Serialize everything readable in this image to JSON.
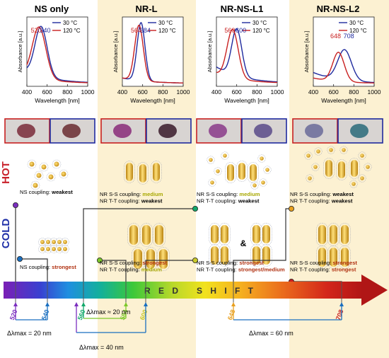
{
  "panels": [
    {
      "title": "NS only",
      "peak_30": "540",
      "peak_120": "520",
      "highlight": false
    },
    {
      "title": "NR-L",
      "peak_30": "584",
      "peak_120": "564",
      "highlight": true
    },
    {
      "title": "NR-NS-L1",
      "peak_30": "600",
      "peak_120": "560",
      "highlight": false
    },
    {
      "title": "NR-NS-L2",
      "peak_30": "708",
      "peak_120": "648",
      "highlight": true
    }
  ],
  "legend": {
    "t30": "30 °C",
    "t120": "120 °C"
  },
  "axes": {
    "xlabel": "Wavelength [nm]",
    "ylabel": "Absorbance [a.u.]",
    "xticks": [
      "400",
      "600",
      "800",
      "1000"
    ]
  },
  "colors": {
    "c30": "#1f2a9e",
    "c120": "#c82020",
    "panel_bg": "#fcf1d2",
    "rod": "#d9a520"
  },
  "side_labels": {
    "hot": "HOT",
    "cold": "COLD"
  },
  "hot_texts": [
    [
      {
        "t": "NS coupling: "
      },
      {
        "t": "weakest",
        "b": true
      }
    ],
    [
      {
        "t": "NR S-S coupling: "
      },
      {
        "t": "medium",
        "c": "#a8a800"
      },
      {
        "t": "\nNR T-T coupling: "
      },
      {
        "t": "weakest",
        "b": true
      }
    ],
    [
      {
        "t": "NR S-S coupling: "
      },
      {
        "t": "medium",
        "c": "#a8a800"
      },
      {
        "t": "\nNR T-T coupling: "
      },
      {
        "t": "weakest",
        "b": true
      }
    ],
    [
      {
        "t": "NR S-S coupling: "
      },
      {
        "t": "weakest",
        "b": true
      },
      {
        "t": "\nNR T-T coupling: "
      },
      {
        "t": "weakest",
        "b": true
      }
    ]
  ],
  "cold_texts": [
    [
      {
        "t": "NS coupling: "
      },
      {
        "t": "strongest",
        "c": "#b03010"
      }
    ],
    [
      {
        "t": "NR S-S coupling: "
      },
      {
        "t": "strongest",
        "c": "#b03010"
      },
      {
        "t": "\nNR T-T coupling: "
      },
      {
        "t": "medium",
        "c": "#a8a800"
      }
    ],
    [
      {
        "t": "NR S-S coupling: "
      },
      {
        "t": "strongest",
        "c": "#b03010"
      },
      {
        "t": "\nNR T-T coupling: "
      },
      {
        "t": "strongest/medium",
        "c": "#b03010"
      }
    ],
    [
      {
        "t": "NR S-S coupling: "
      },
      {
        "t": "strongest",
        "c": "#b03010"
      },
      {
        "t": "\nNR T-T coupling: "
      },
      {
        "t": "strongest",
        "c": "#b03010"
      }
    ]
  ],
  "ampersand": "&",
  "redshift_word": "R E D   S H I F T",
  "bar_ticks": [
    {
      "label": "520",
      "color": "#7b2fbf"
    },
    {
      "label": "540",
      "color": "#1a6fc0"
    },
    {
      "label": "560",
      "color": "#13a86b"
    },
    {
      "label": "584",
      "color": "#7cc82a"
    },
    {
      "label": "600",
      "color": "#c8c82a"
    },
    {
      "label": "648",
      "color": "#e8a020"
    },
    {
      "label": "708",
      "color": "#c82020"
    }
  ],
  "deltas": [
    {
      "label": "Δλmax = 20 nm"
    },
    {
      "label": "Δλmax ≈ 20 nm"
    },
    {
      "label": "Δλmax = 40 nm"
    },
    {
      "label": "Δλmax = 60 nm"
    }
  ]
}
